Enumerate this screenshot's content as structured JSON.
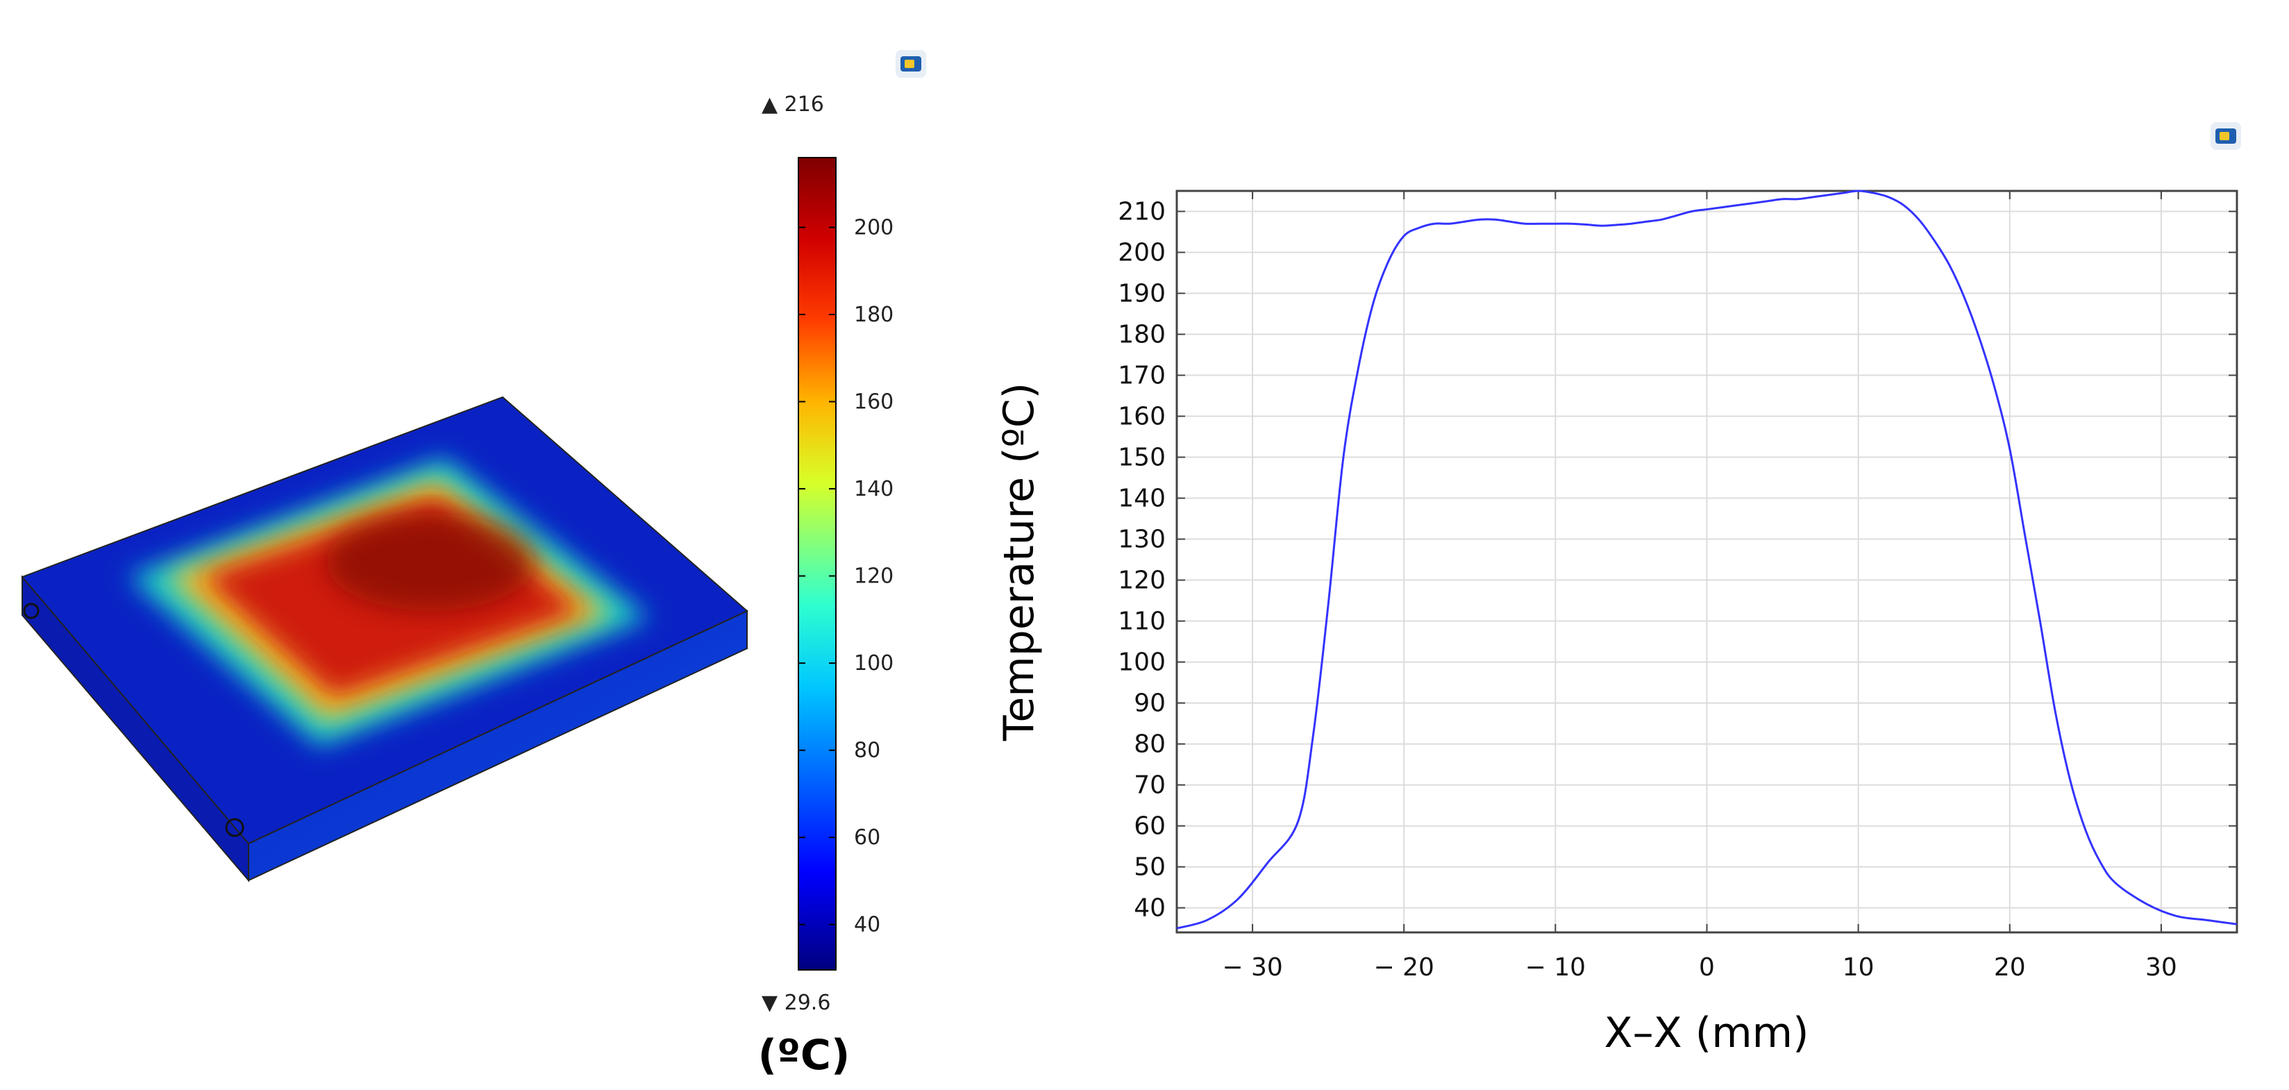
{
  "colorbar": {
    "max_marker": "▲ 216",
    "min_marker": "▼ 29.6",
    "unit": "(ºC)",
    "range": [
      29.6,
      216
    ],
    "ticks": [
      "200",
      "180",
      "160",
      "140",
      "120",
      "100",
      "80",
      "60",
      "40"
    ],
    "colormap": [
      "#00007f",
      "#0000ff",
      "#007fff",
      "#00ffff",
      "#7fff7f",
      "#ffff00",
      "#ff7f00",
      "#ff0000",
      "#7f0000"
    ]
  },
  "chart_data": {
    "type": "line",
    "xlabel": "X–X (mm)",
    "ylabel": "Temperature (ºC)",
    "xlim": [
      -35,
      35
    ],
    "ylim": [
      34,
      215
    ],
    "x_ticks": [
      "− 30",
      "− 20",
      "− 10",
      "0",
      "10",
      "20",
      "30"
    ],
    "y_ticks": [
      "40",
      "50",
      "60",
      "70",
      "80",
      "90",
      "100",
      "110",
      "120",
      "130",
      "140",
      "150",
      "160",
      "170",
      "180",
      "190",
      "200",
      "210"
    ],
    "grid": true,
    "line_color": "#3333ff",
    "series": [
      {
        "x": [
          -35,
          -33,
          -31,
          -29,
          -27,
          -26,
          -25,
          -24,
          -23,
          -22,
          -21,
          -20,
          -19,
          -18,
          -17,
          -16,
          -15,
          -14,
          -13,
          -12,
          -11,
          -10,
          -9,
          -8,
          -7,
          -6,
          -5,
          -4,
          -3,
          -2,
          -1,
          0,
          1,
          2,
          3,
          4,
          5,
          6,
          7,
          8,
          9,
          10,
          11,
          12,
          13,
          14,
          15,
          16,
          17,
          18,
          19,
          20,
          21,
          22,
          23,
          24,
          25,
          26,
          27,
          29,
          31,
          33,
          35
        ],
        "y": [
          35,
          37,
          42,
          51,
          61,
          82,
          114,
          150,
          172,
          188,
          198,
          204,
          206,
          207,
          207,
          207.5,
          208,
          208,
          207.5,
          207,
          207,
          207,
          207,
          206.8,
          206.5,
          206.7,
          207,
          207.5,
          208,
          209,
          210,
          210.5,
          211,
          211.5,
          212,
          212.5,
          213,
          213,
          213.5,
          214,
          214.5,
          215,
          214.5,
          213.5,
          211.5,
          208,
          203,
          197,
          189,
          179,
          167,
          152,
          131,
          110,
          88,
          71,
          59,
          51,
          46,
          41,
          38,
          37,
          36
        ]
      }
    ]
  }
}
